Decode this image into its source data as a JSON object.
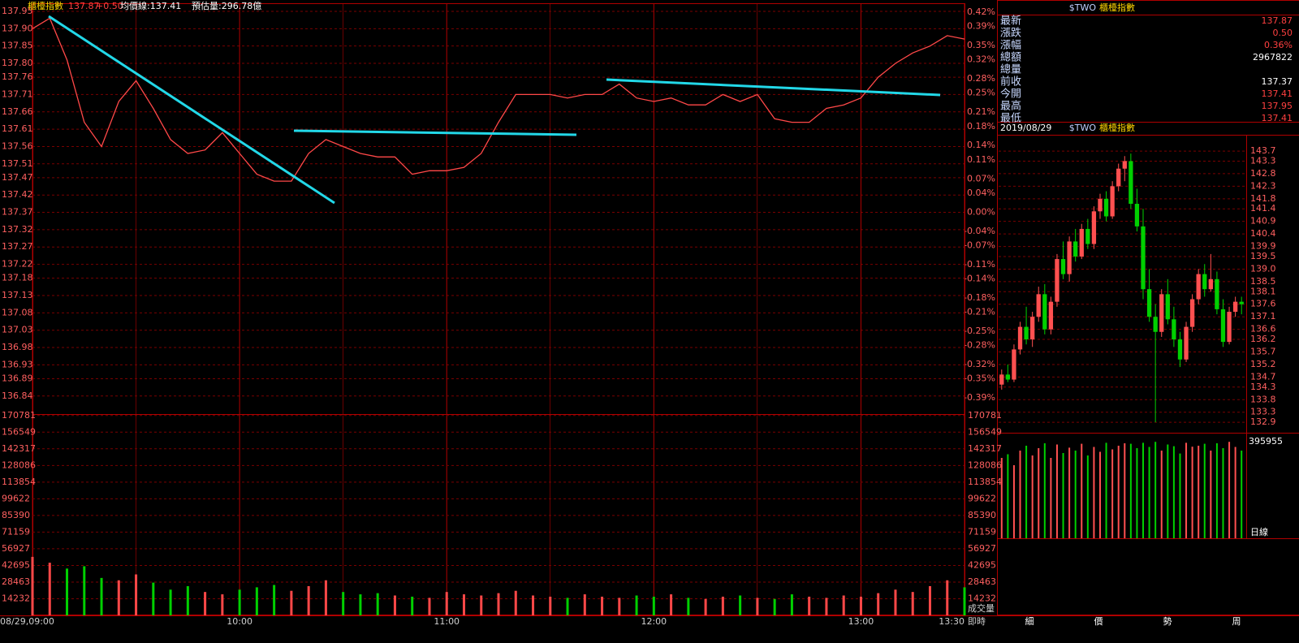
{
  "header": {
    "name": "櫃檯指數",
    "last": "137.87",
    "change": "+0.50",
    "average": "均價線:137.41",
    "estimate": "預估量:296.78億"
  },
  "quote": {
    "code": "$TWO",
    "title": "櫃檯指數",
    "rows": [
      {
        "label": "最新",
        "value": "137.87",
        "color": "#ff4040"
      },
      {
        "label": "漲跌",
        "value": "0.50",
        "color": "#ff4040"
      },
      {
        "label": "漲幅",
        "value": "0.36%",
        "color": "#ff4040"
      },
      {
        "label": "總額",
        "value": "2967822",
        "color": "#ffffff"
      },
      {
        "label": "總量"
      },
      {
        "label": "前收",
        "value": "137.37",
        "color": "#ffffff"
      },
      {
        "label": "今開",
        "value": "137.41",
        "color": "#ff4040"
      },
      {
        "label": "最高",
        "value": "137.95",
        "color": "#ff4040"
      },
      {
        "label": "最低",
        "value": "137.41",
        "color": "#ff4040"
      }
    ]
  },
  "kline_header": {
    "date": "2019/08/29",
    "code": "$TWO",
    "title": "櫃檯指數"
  },
  "buttons": [
    "細",
    "價",
    "勢",
    "周"
  ],
  "chart_data": [
    {
      "type": "line",
      "x": [
        "09:00",
        "09:05",
        "09:10",
        "09:15",
        "09:20",
        "09:25",
        "09:30",
        "09:35",
        "09:40",
        "09:45",
        "09:50",
        "09:55",
        "10:00",
        "10:05",
        "10:10",
        "10:15",
        "10:20",
        "10:25",
        "10:30",
        "10:35",
        "10:40",
        "10:45",
        "10:50",
        "10:55",
        "11:00",
        "11:05",
        "11:10",
        "11:15",
        "11:20",
        "11:25",
        "11:30",
        "11:35",
        "11:40",
        "11:45",
        "11:50",
        "11:55",
        "12:00",
        "12:05",
        "12:10",
        "12:15",
        "12:20",
        "12:25",
        "12:30",
        "12:35",
        "12:40",
        "12:45",
        "12:50",
        "12:55",
        "13:00",
        "13:05",
        "13:10",
        "13:15",
        "13:20",
        "13:25",
        "13:30"
      ],
      "series": [
        {
          "color": "#ff4848",
          "values": [
            137.9,
            137.93,
            137.81,
            137.63,
            137.56,
            137.69,
            137.75,
            137.67,
            137.58,
            137.54,
            137.55,
            137.6,
            137.54,
            137.48,
            137.46,
            137.46,
            137.54,
            137.58,
            137.56,
            137.54,
            137.53,
            137.53,
            137.48,
            137.49,
            137.49,
            137.5,
            137.54,
            137.63,
            137.71,
            137.71,
            137.71,
            137.7,
            137.71,
            137.71,
            137.74,
            137.7,
            137.69,
            137.7,
            137.68,
            137.68,
            137.71,
            137.69,
            137.71,
            137.64,
            137.63,
            137.63,
            137.67,
            137.68,
            137.7,
            137.76,
            137.8,
            137.83,
            137.85,
            137.88,
            137.87
          ]
        }
      ],
      "ylim": [
        136.788,
        137.964
      ],
      "yticks": [
        137.95,
        {
          "value": 137.9,
          "label": "137.90"
        },
        137.85,
        {
          "value": 137.8,
          "label": "137.80"
        },
        137.76,
        137.71,
        137.66,
        137.61,
        137.56,
        137.51,
        137.47,
        137.42,
        137.37,
        137.32,
        137.27,
        137.22,
        137.18,
        137.13,
        137.08,
        137.03,
        136.98,
        136.93,
        136.89,
        136.84
      ],
      "y2lim": [
        -0.424,
        0.432
      ],
      "y2ticks": [
        {
          "value": 0.42,
          "label": "0.42%"
        },
        {
          "value": 0.39,
          "label": "0.39%"
        },
        {
          "value": 0.35,
          "label": "0.35%"
        },
        {
          "value": 0.32,
          "label": "0.32%"
        },
        {
          "value": 0.28,
          "label": "0.28%"
        },
        {
          "value": 0.25,
          "label": "0.25%"
        },
        {
          "value": 0.21,
          "label": "0.21%"
        },
        {
          "value": 0.18,
          "label": "0.18%"
        },
        {
          "value": 0.14,
          "label": "0.14%"
        },
        {
          "value": 0.11,
          "label": "0.11%"
        },
        {
          "value": 0.07,
          "label": "0.07%"
        },
        {
          "value": 0.04,
          "label": "0.04%"
        },
        {
          "value": 0,
          "label": "0.00%"
        },
        {
          "value": -0.04,
          "label": "-0.04%"
        },
        {
          "value": -0.07,
          "label": "-0.07%"
        },
        {
          "value": -0.11,
          "label": "-0.11%"
        },
        {
          "value": -0.14,
          "label": "-0.14%"
        },
        {
          "value": -0.18,
          "label": "-0.18%"
        },
        {
          "value": -0.21,
          "label": "-0.21%"
        },
        {
          "value": -0.25,
          "label": "-0.25%"
        },
        {
          "value": -0.28,
          "label": "-0.28%"
        },
        {
          "value": -0.32,
          "label": "-0.32%"
        },
        {
          "value": -0.35,
          "label": "-0.35%"
        },
        {
          "value": -0.39,
          "label": "-0.39%"
        }
      ],
      "xticks": [
        "08/29,09:00",
        "10:00",
        "11:00",
        "12:00",
        "13:00",
        "13:30"
      ],
      "xlabel": "即時",
      "grid": true
    },
    {
      "type": "bar",
      "values": [
        50000,
        45000,
        40000,
        42000,
        32000,
        30000,
        35000,
        28000,
        22000,
        25000,
        20000,
        18000,
        22000,
        24000,
        26000,
        21000,
        25000,
        30000,
        20000,
        18000,
        19000,
        17000,
        16000,
        15000,
        20000,
        18000,
        17000,
        19000,
        21000,
        17000,
        16000,
        15000,
        18000,
        16000,
        15000,
        17000,
        16000,
        18000,
        15000,
        14000,
        16000,
        17000,
        15000,
        14000,
        18000,
        16000,
        15000,
        17000,
        16000,
        19000,
        22000,
        20000,
        25000,
        30000,
        24000
      ],
      "up_color": "#ff4848",
      "down_color": "#00d000",
      "ylim": [
        0,
        172000
      ],
      "yticks": [
        170781,
        156549,
        142317,
        128086,
        113854,
        99622,
        85390,
        71159,
        56927,
        42695,
        28463,
        14232
      ],
      "ylabel": "成交量",
      "grid": true
    },
    {
      "type": "candlestick",
      "open": [
        134.4,
        134.8,
        134.6,
        135.8,
        136.7,
        136.2,
        137.1,
        138.0,
        136.6,
        137.7,
        139.4,
        138.8,
        140.1,
        139.5,
        140.6,
        140.0,
        141.3,
        141.8,
        141.1,
        142.3,
        143.0,
        143.3,
        141.6,
        140.7,
        138.2,
        137.1,
        136.5,
        138.0,
        137.0,
        136.2,
        135.4,
        136.7,
        137.8,
        138.8,
        138.2,
        138.6,
        137.4,
        136.1,
        137.3,
        137.7
      ],
      "high": [
        135.0,
        135.2,
        136.0,
        136.9,
        137.5,
        137.3,
        138.3,
        138.4,
        137.9,
        139.6,
        140.1,
        140.3,
        140.6,
        140.8,
        141.0,
        141.5,
        142.0,
        142.1,
        142.5,
        143.2,
        143.5,
        143.6,
        142.2,
        141.4,
        139.0,
        137.6,
        138.2,
        138.6,
        137.5,
        136.5,
        136.9,
        138.0,
        139.0,
        139.2,
        139.6,
        138.9,
        137.8,
        137.5,
        137.9,
        137.9
      ],
      "low": [
        134.2,
        134.5,
        134.5,
        135.6,
        136.0,
        135.9,
        136.9,
        136.4,
        136.4,
        137.5,
        138.6,
        138.5,
        139.3,
        139.4,
        139.8,
        139.8,
        141.0,
        140.9,
        141.0,
        142.1,
        142.5,
        141.4,
        140.5,
        137.8,
        136.9,
        132.9,
        136.3,
        136.8,
        135.9,
        135.1,
        135.3,
        136.5,
        137.6,
        137.9,
        138.1,
        137.2,
        135.9,
        136.0,
        137.1,
        137.2
      ],
      "close": [
        134.8,
        134.6,
        135.8,
        136.7,
        136.2,
        137.1,
        138.0,
        136.6,
        137.7,
        139.4,
        138.8,
        140.1,
        139.5,
        140.6,
        140.0,
        141.3,
        141.8,
        141.1,
        142.3,
        143.0,
        143.3,
        141.6,
        140.7,
        138.2,
        137.1,
        136.5,
        138.0,
        137.0,
        136.2,
        135.4,
        136.7,
        137.8,
        138.8,
        138.2,
        138.6,
        137.4,
        136.1,
        137.3,
        137.7,
        137.6
      ],
      "up_color": "#ff5050",
      "down_color": "#00d000",
      "ylim": [
        132.58,
        144.22
      ],
      "yticks": [
        143.7,
        143.3,
        142.8,
        142.3,
        141.8,
        141.4,
        140.9,
        140.4,
        139.9,
        139.5,
        {
          "value": 139,
          "label": "139.0"
        },
        138.5,
        138.1,
        137.6,
        137.1,
        136.6,
        136.2,
        135.7,
        135.2,
        134.7,
        134.3,
        133.8,
        133.3,
        132.9
      ],
      "grid": true
    },
    {
      "type": "bar",
      "values": [
        330000,
        345000,
        300000,
        360000,
        380000,
        340000,
        370000,
        390000,
        330000,
        385000,
        350000,
        372000,
        360000,
        388000,
        340000,
        375000,
        355000,
        392000,
        365000,
        380000,
        390000,
        388000,
        370000,
        392000,
        375000,
        395955,
        360000,
        385000,
        378000,
        348000,
        392000,
        376000,
        380000,
        388000,
        360000,
        390000,
        370000,
        395955,
        375000,
        360000
      ],
      "up_color": "#ff5050",
      "down_color": "#00d000",
      "ylim": [
        0,
        410000
      ],
      "yticks": [
        395955
      ],
      "ylabel": "日線"
    }
  ]
}
